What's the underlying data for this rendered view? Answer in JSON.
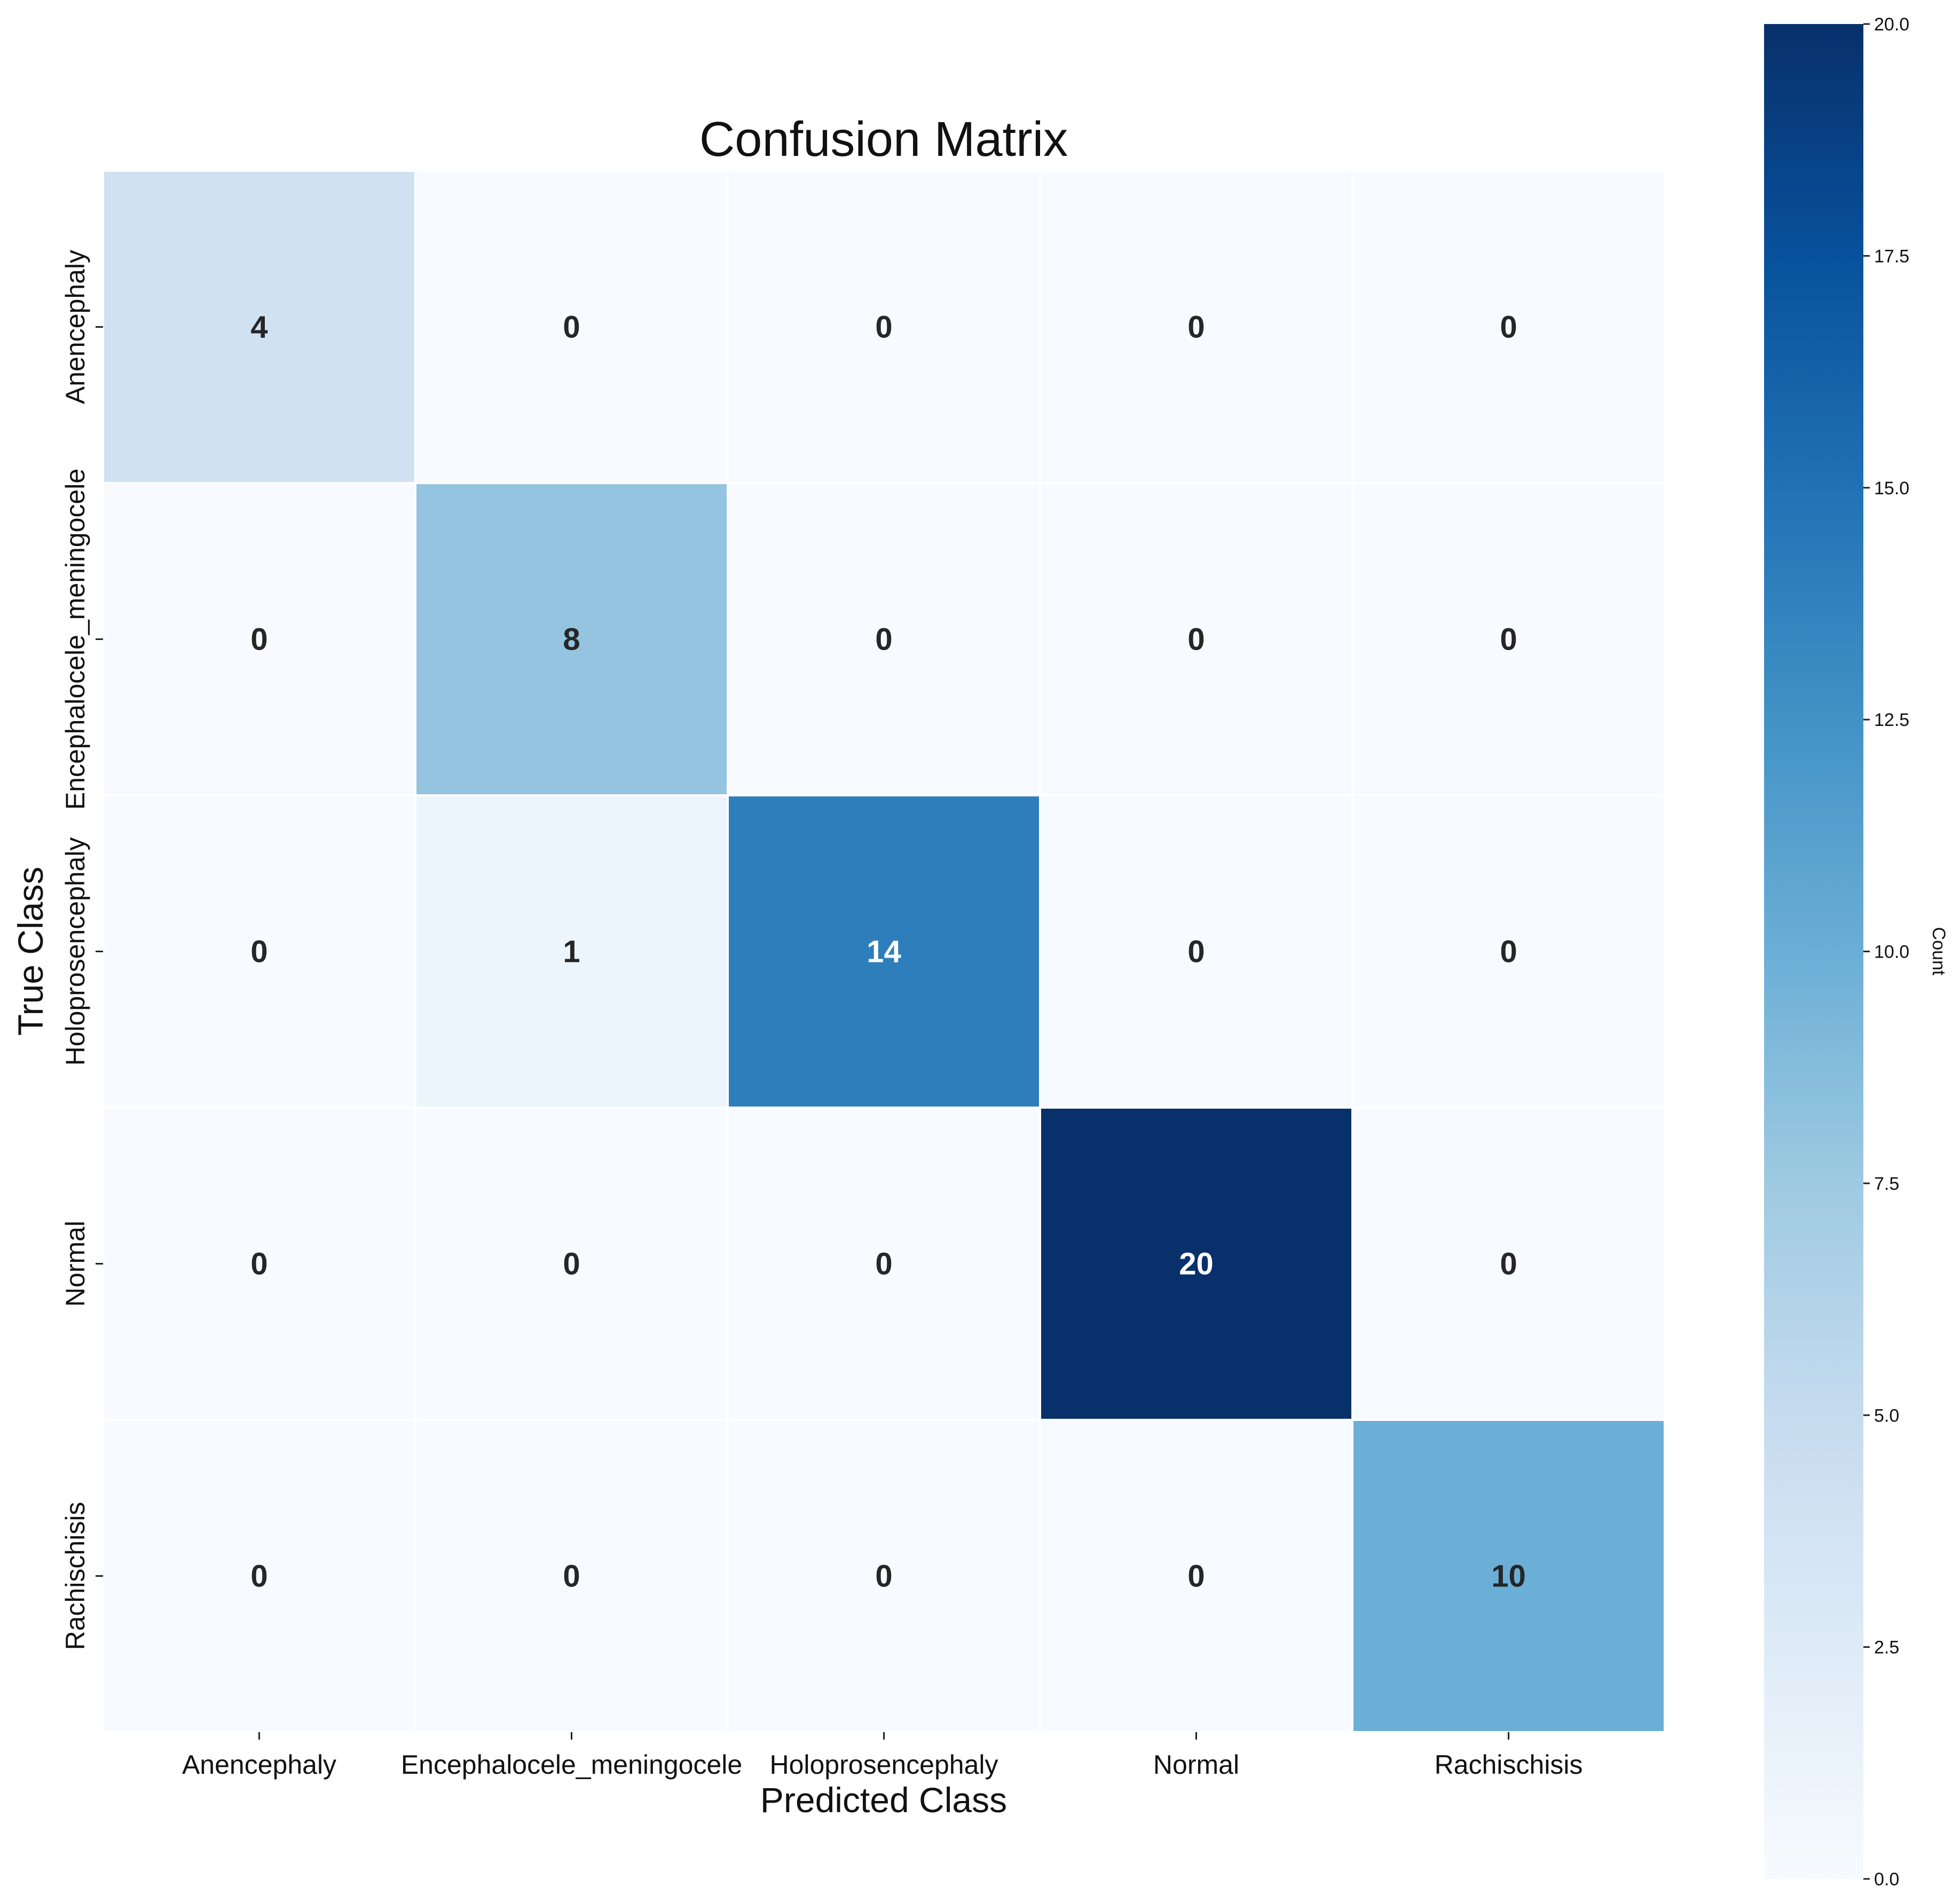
{
  "chart_data": {
    "type": "heatmap",
    "title": "Confusion Matrix",
    "xlabel": "Predicted Class",
    "ylabel": "True Class",
    "x_categories": [
      "Anencephaly",
      "Encephalocele_meningocele",
      "Holoprosencephaly",
      "Normal",
      "Rachischisis"
    ],
    "y_categories": [
      "Anencephaly",
      "Encephalocele_meningocele",
      "Holoprosencephaly",
      "Normal",
      "Rachischisis"
    ],
    "values": [
      [
        4,
        0,
        0,
        0,
        0
      ],
      [
        0,
        8,
        0,
        0,
        0
      ],
      [
        0,
        1,
        14,
        0,
        0
      ],
      [
        0,
        0,
        0,
        20,
        0
      ],
      [
        0,
        0,
        0,
        0,
        10
      ]
    ],
    "colormap": "Blues",
    "vmin": 0,
    "vmax": 20,
    "colorbar_label": "Count",
    "colorbar_ticks": [
      "0.0",
      "2.5",
      "5.0",
      "7.5",
      "10.0",
      "12.5",
      "15.0",
      "17.5",
      "20.0"
    ]
  }
}
